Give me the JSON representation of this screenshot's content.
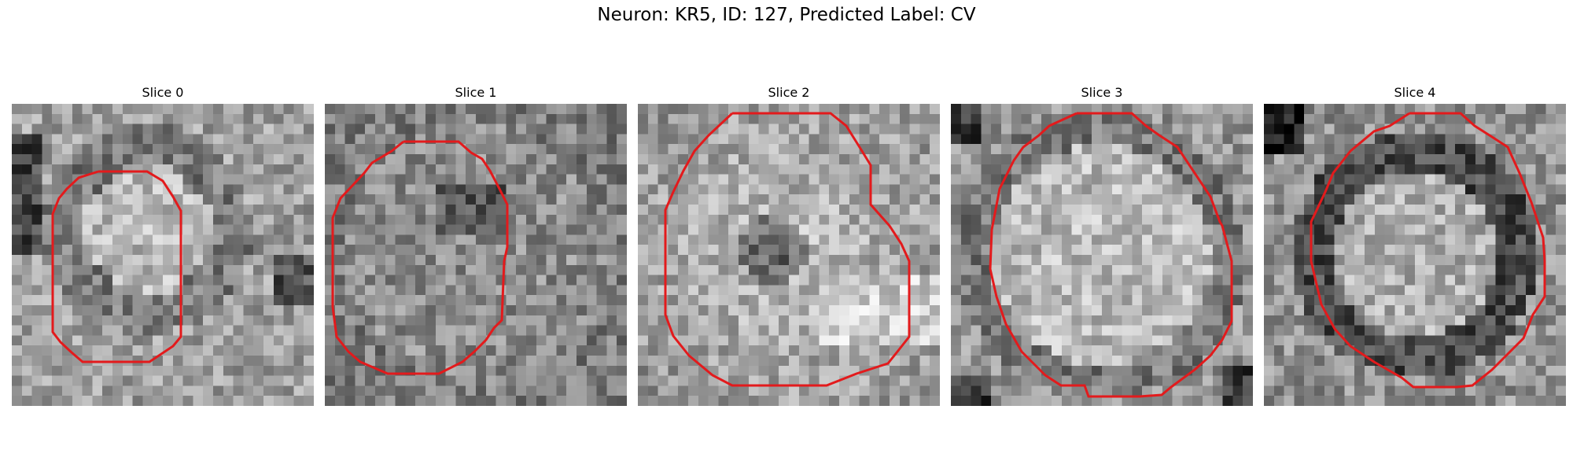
{
  "figure": {
    "title": "Neuron: KR5, ID: 127, Predicted Label: CV",
    "contour_color": "#e31a1c",
    "colormap": "gray"
  },
  "panels": [
    {
      "title": "Slice 0",
      "background_shading": "bright blob center, darker ring, darker left edge"
    },
    {
      "title": "Slice 1",
      "background_shading": "mottled gray, dark patches upper center"
    },
    {
      "title": "Slice 2",
      "background_shading": "light center with dark spot"
    },
    {
      "title": "Slice 3",
      "background_shading": "bright center, dark corners"
    },
    {
      "title": "Slice 4",
      "background_shading": "dark ring around bright center"
    }
  ]
}
